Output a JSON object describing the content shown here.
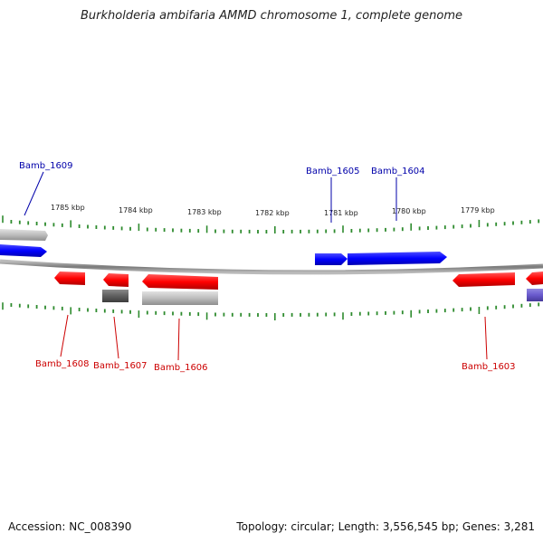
{
  "title": "Burkholderia ambifaria AMMD chromosome 1, complete genome",
  "accession_text": "Accession: NC_008390",
  "summary_text": "Topology: circular; Length: 3,556,545 bp; Genes: 3,281",
  "colors": {
    "plus_gene": "#0000ff",
    "minus_gene": "#ff0000",
    "other_gray": "#bbbbbb",
    "dark_gray": "#666666",
    "purple": "#6a5acd",
    "tick": "#2e8b2e",
    "backbone": "#888888",
    "label_plus": "#0000aa",
    "label_minus": "#cc0000"
  },
  "scale_labels": [
    "1785 kbp",
    "1784 kbp",
    "1783 kbp",
    "1782 kbp",
    "1781 kbp",
    "1780 kbp",
    "1779 kbp"
  ],
  "gene_labels": {
    "top": [
      "Bamb_1609",
      "Bamb_1605",
      "Bamb_1604"
    ],
    "bottom": [
      "Bamb_1608",
      "Bamb_1607",
      "Bamb_1606",
      "Bamb_1603"
    ]
  }
}
